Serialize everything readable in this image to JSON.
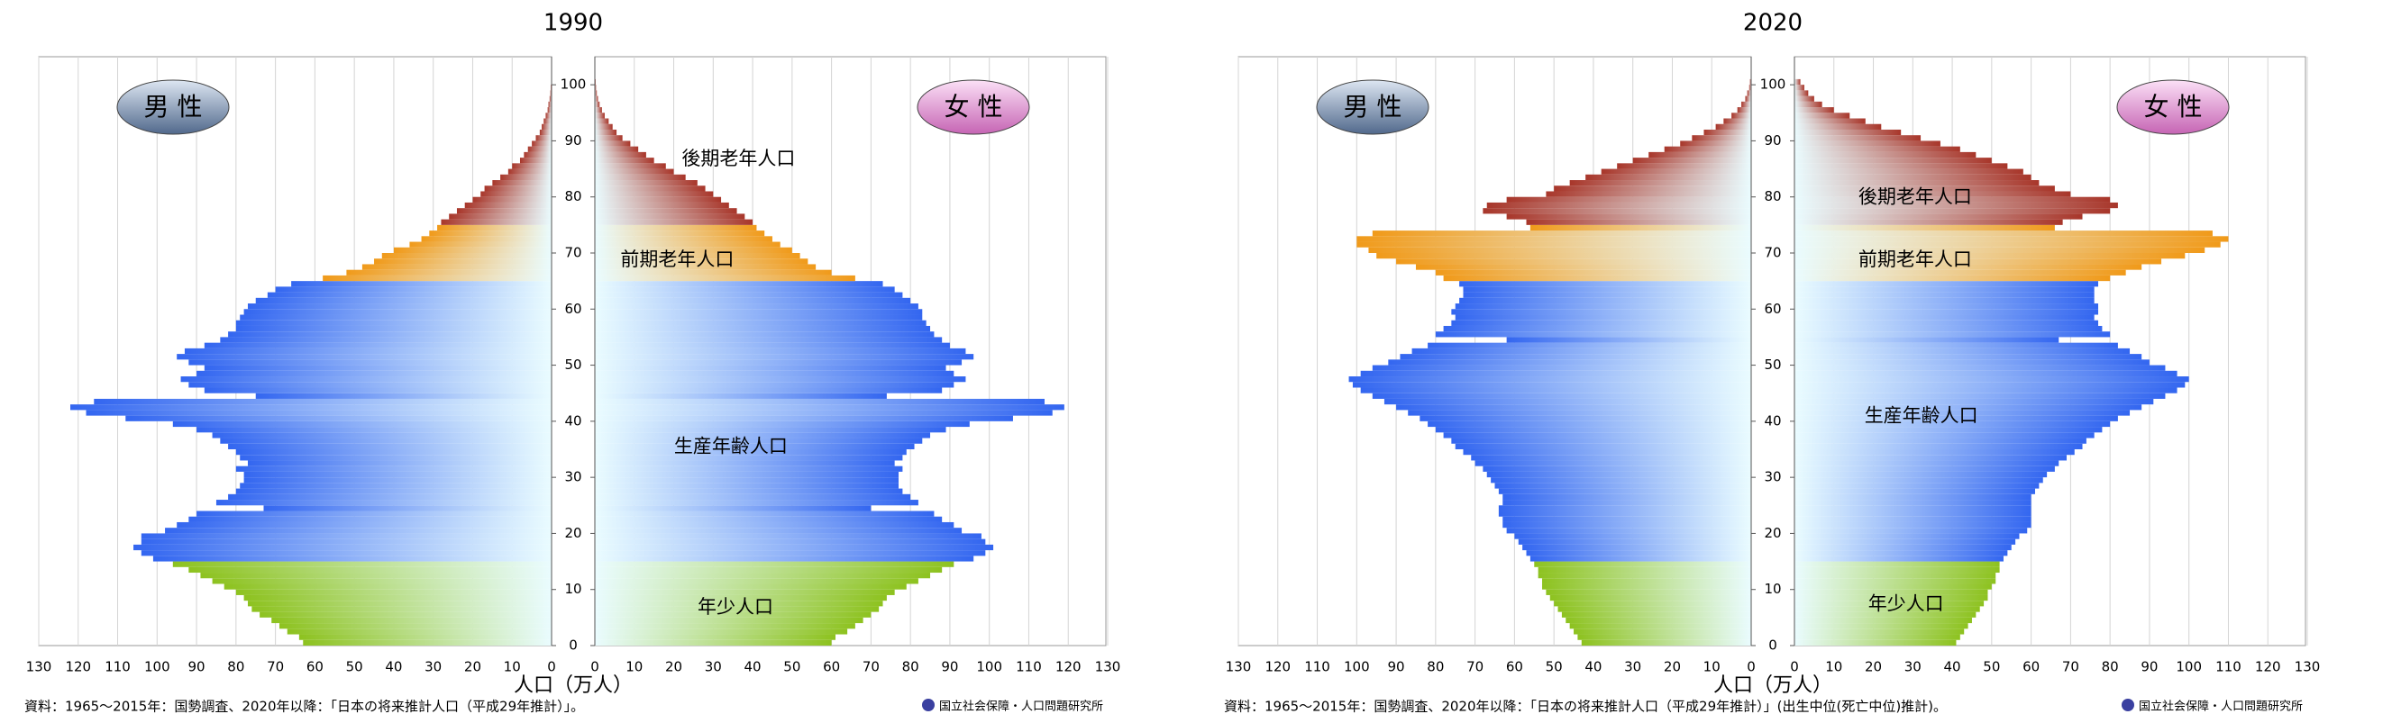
{
  "chart_data": [
    {
      "type": "pyramid",
      "title": "1990",
      "sexes": [
        "男 性",
        "女 性"
      ],
      "x_label": "人口（万人）",
      "xlim": [
        0,
        130
      ],
      "xticks": [
        0,
        10,
        20,
        30,
        40,
        50,
        60,
        70,
        80,
        90,
        100,
        110,
        120,
        130
      ],
      "ylim": [
        0,
        105
      ],
      "yticks": [
        0,
        10,
        20,
        30,
        40,
        50,
        60,
        70,
        80,
        90,
        100
      ],
      "grid": true,
      "groups": [
        {
          "name": "年少人口",
          "color": "#8dc21f",
          "ages": [
            0,
            1,
            2,
            3,
            4,
            5,
            6,
            7,
            8,
            9,
            10,
            11,
            12,
            13,
            14
          ],
          "male": [
            63,
            64,
            67,
            69,
            71,
            74,
            76,
            77,
            78,
            80,
            83,
            86,
            89,
            92,
            96
          ],
          "female": [
            60,
            61,
            64,
            66,
            68,
            70,
            72,
            73,
            74,
            76,
            79,
            82,
            85,
            88,
            91
          ]
        },
        {
          "name": "生産年齢人口",
          "color": "#3366f0",
          "ages": [
            15,
            16,
            17,
            18,
            19,
            20,
            21,
            22,
            23,
            24,
            25,
            26,
            27,
            28,
            29,
            30,
            31,
            32,
            33,
            34,
            35,
            36,
            37,
            38,
            39,
            40,
            41,
            42,
            43,
            44,
            45,
            46,
            47,
            48,
            49,
            50,
            51,
            52,
            53,
            54,
            55,
            56,
            57,
            58,
            59,
            60,
            61,
            62,
            63,
            64
          ],
          "male": [
            101,
            104,
            106,
            104,
            104,
            98,
            95,
            92,
            90,
            73,
            85,
            82,
            80,
            79,
            78,
            78,
            80,
            77,
            79,
            80,
            82,
            84,
            86,
            90,
            96,
            108,
            118,
            122,
            116,
            75,
            88,
            92,
            94,
            90,
            88,
            92,
            95,
            93,
            88,
            84,
            82,
            80,
            80,
            79,
            78,
            77,
            75,
            72,
            70,
            66
          ],
          "female": [
            96,
            99,
            101,
            99,
            98,
            93,
            91,
            88,
            86,
            70,
            82,
            80,
            78,
            77,
            77,
            77,
            78,
            76,
            78,
            79,
            81,
            83,
            85,
            89,
            95,
            106,
            116,
            119,
            114,
            74,
            88,
            91,
            94,
            91,
            89,
            93,
            96,
            94,
            90,
            88,
            86,
            85,
            84,
            83,
            83,
            82,
            80,
            78,
            76,
            73
          ]
        },
        {
          "name": "前期老年人口",
          "color": "#f09a1a",
          "ages": [
            65,
            66,
            67,
            68,
            69,
            70,
            71,
            72,
            73,
            74
          ],
          "male": [
            58,
            52,
            48,
            45,
            43,
            40,
            36,
            33,
            31,
            29
          ],
          "female": [
            66,
            60,
            56,
            54,
            52,
            50,
            47,
            45,
            43,
            41
          ]
        },
        {
          "name": "後期老年人口",
          "color": "#a8362a",
          "ages": [
            75,
            76,
            77,
            78,
            79,
            80,
            81,
            82,
            83,
            84,
            85,
            86,
            87,
            88,
            89,
            90,
            91,
            92,
            93,
            94,
            95,
            96,
            97,
            98,
            99,
            100
          ],
          "male": [
            28,
            26,
            24,
            22,
            20,
            18,
            17,
            15,
            13,
            11,
            10,
            8,
            7,
            6,
            5,
            4,
            3,
            2.5,
            2,
            1.5,
            1,
            0.8,
            0.5,
            0.3,
            0.2,
            0.1
          ],
          "female": [
            40,
            38,
            36,
            34,
            32,
            30,
            28,
            26,
            23,
            20,
            18,
            15,
            13,
            11,
            9,
            7,
            5.5,
            4.5,
            3.5,
            2.5,
            1.8,
            1.2,
            0.8,
            0.5,
            0.3,
            0.2
          ]
        }
      ],
      "source": "資料：1965～2015年：国勢調査、2020年以降：「日本の将来推計人口（平成29年推計）」。",
      "logo": "国立社会保障・人口問題研究所"
    },
    {
      "type": "pyramid",
      "title": "2020",
      "sexes": [
        "男 性",
        "女 性"
      ],
      "x_label": "人口（万人）",
      "xlim": [
        0,
        130
      ],
      "xticks": [
        0,
        10,
        20,
        30,
        40,
        50,
        60,
        70,
        80,
        90,
        100,
        110,
        120,
        130
      ],
      "ylim": [
        0,
        105
      ],
      "yticks": [
        0,
        10,
        20,
        30,
        40,
        50,
        60,
        70,
        80,
        90,
        100
      ],
      "grid": true,
      "groups": [
        {
          "name": "年少人口",
          "color": "#8dc21f",
          "ages": [
            0,
            1,
            2,
            3,
            4,
            5,
            6,
            7,
            8,
            9,
            10,
            11,
            12,
            13,
            14
          ],
          "male": [
            43,
            44,
            45,
            46,
            47,
            48,
            49,
            50,
            51,
            52,
            53,
            53,
            54,
            54,
            55
          ],
          "female": [
            41,
            42,
            43,
            44,
            45,
            46,
            47,
            48,
            49,
            49,
            50,
            51,
            51,
            52,
            52
          ]
        },
        {
          "name": "生産年齢人口",
          "color": "#3366f0",
          "ages": [
            15,
            16,
            17,
            18,
            19,
            20,
            21,
            22,
            23,
            24,
            25,
            26,
            27,
            28,
            29,
            30,
            31,
            32,
            33,
            34,
            35,
            36,
            37,
            38,
            39,
            40,
            41,
            42,
            43,
            44,
            45,
            46,
            47,
            48,
            49,
            50,
            51,
            52,
            53,
            54,
            55,
            56,
            57,
            58,
            59,
            60,
            61,
            62,
            63,
            64
          ],
          "male": [
            56,
            57,
            58,
            59,
            60,
            62,
            63,
            63,
            64,
            64,
            63,
            63,
            64,
            65,
            66,
            67,
            68,
            70,
            71,
            73,
            75,
            76,
            78,
            80,
            82,
            84,
            87,
            90,
            93,
            96,
            99,
            101,
            102,
            99,
            96,
            92,
            89,
            86,
            82,
            62,
            80,
            78,
            76,
            75,
            76,
            75,
            74,
            73,
            73,
            74
          ],
          "female": [
            53,
            54,
            55,
            56,
            57,
            59,
            60,
            60,
            60,
            60,
            60,
            60,
            61,
            62,
            63,
            64,
            66,
            67,
            69,
            71,
            73,
            74,
            76,
            78,
            80,
            82,
            85,
            88,
            91,
            94,
            97,
            99,
            100,
            97,
            94,
            90,
            88,
            85,
            82,
            67,
            80,
            78,
            77,
            76,
            77,
            77,
            76,
            76,
            76,
            77
          ]
        },
        {
          "name": "前期老年人口",
          "color": "#f09a1a",
          "ages": [
            65,
            66,
            67,
            68,
            69,
            70,
            71,
            72,
            73,
            74
          ],
          "male": [
            78,
            80,
            85,
            90,
            95,
            97,
            100,
            100,
            96,
            56
          ],
          "female": [
            80,
            84,
            88,
            93,
            99,
            104,
            108,
            110,
            106,
            66
          ]
        },
        {
          "name": "後期老年人口",
          "color": "#a8362a",
          "ages": [
            75,
            76,
            77,
            78,
            79,
            80,
            81,
            82,
            83,
            84,
            85,
            86,
            87,
            88,
            89,
            90,
            91,
            92,
            93,
            94,
            95,
            96,
            97,
            98,
            99,
            100
          ],
          "male": [
            57,
            62,
            68,
            67,
            62,
            52,
            50,
            46,
            42,
            38,
            34,
            30,
            26,
            22,
            18,
            15,
            12,
            9,
            7,
            5,
            3.5,
            2.5,
            1.5,
            1,
            0.5,
            0.3
          ],
          "female": [
            68,
            73,
            80,
            82,
            80,
            70,
            66,
            62,
            60,
            58,
            54,
            50,
            46,
            42,
            37,
            32,
            27,
            22,
            18,
            14,
            10,
            7,
            5,
            3.5,
            2.5,
            1.5
          ]
        }
      ],
      "source": "資料：1965～2015年：国勢調査、2020年以降：「日本の将来推計人口（平成29年推計）」(出生中位(死亡中位)推計)。",
      "logo": "国立社会保障・人口問題研究所"
    }
  ]
}
